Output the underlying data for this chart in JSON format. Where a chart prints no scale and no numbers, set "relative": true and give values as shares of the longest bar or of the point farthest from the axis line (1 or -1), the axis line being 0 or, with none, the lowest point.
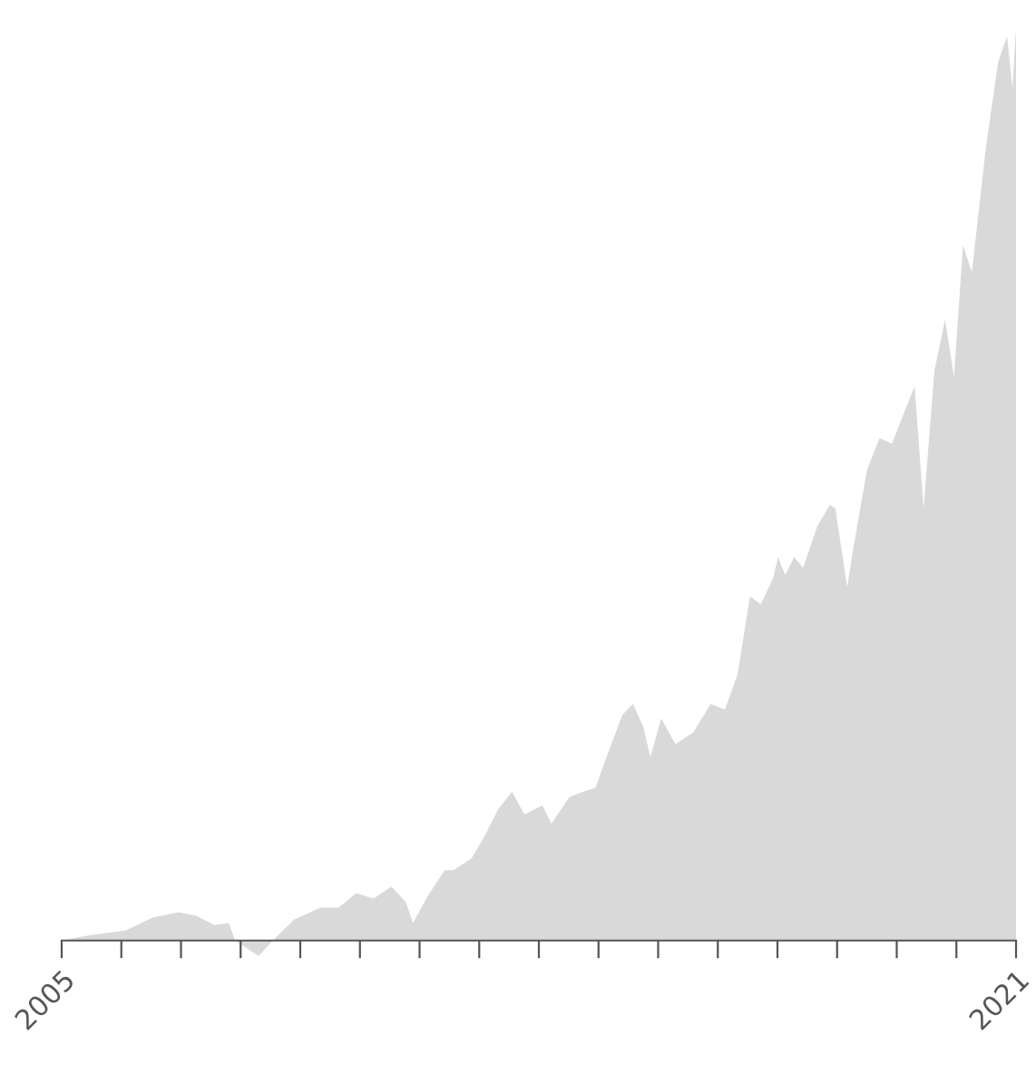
{
  "chart_data": {
    "type": "area",
    "relative": true,
    "color": "#d9d9d9",
    "x": [
      2005.0,
      2005.48,
      2006.07,
      2006.52,
      2006.96,
      2007.26,
      2007.56,
      2007.8,
      2007.91,
      2008.3,
      2008.6,
      2008.9,
      2009.34,
      2009.64,
      2009.94,
      2010.23,
      2010.53,
      2010.77,
      2010.89,
      2011.13,
      2011.42,
      2011.57,
      2011.87,
      2012.08,
      2012.32,
      2012.55,
      2012.76,
      2013.06,
      2013.21,
      2013.51,
      2013.74,
      2013.95,
      2014.1,
      2014.4,
      2014.58,
      2014.75,
      2014.87,
      2015.05,
      2015.29,
      2015.59,
      2015.88,
      2016.12,
      2016.33,
      2016.54,
      2016.72,
      2016.93,
      2017.01,
      2017.13,
      2017.28,
      2017.43,
      2017.67,
      2017.88,
      2017.97,
      2018.17,
      2018.26,
      2018.5,
      2018.71,
      2018.92,
      2019.16,
      2019.3,
      2019.45,
      2019.63,
      2019.81,
      2019.96,
      2020.11,
      2020.26,
      2020.49,
      2020.7,
      2020.85,
      2020.94,
      2021.0
    ],
    "values": [
      0,
      0.006,
      0.011,
      0.025,
      0.031,
      0.027,
      0.017,
      0.019,
      0,
      -0.017,
      0.004,
      0.023,
      0.036,
      0.036,
      0.052,
      0.046,
      0.059,
      0.042,
      0.019,
      0.048,
      0.077,
      0.077,
      0.09,
      0.113,
      0.144,
      0.163,
      0.138,
      0.148,
      0.128,
      0.157,
      0.163,
      0.167,
      0.195,
      0.247,
      0.259,
      0.234,
      0.201,
      0.243,
      0.215,
      0.228,
      0.259,
      0.253,
      0.291,
      0.377,
      0.368,
      0.397,
      0.42,
      0.4,
      0.42,
      0.408,
      0.454,
      0.477,
      0.473,
      0.387,
      0.425,
      0.515,
      0.55,
      0.544,
      0.584,
      0.607,
      0.473,
      0.623,
      0.68,
      0.617,
      0.761,
      0.732,
      0.866,
      0.962,
      0.99,
      0.933,
      1
    ],
    "xlim": [
      2005,
      2021
    ],
    "xticks": [
      2005,
      {
        "value": 2006,
        "label": null
      },
      {
        "value": 2007,
        "label": null
      },
      {
        "value": 2008,
        "label": null
      },
      {
        "value": 2009,
        "label": null
      },
      {
        "value": 2010,
        "label": null
      },
      {
        "value": 2011,
        "label": null
      },
      {
        "value": 2012,
        "label": null
      },
      {
        "value": 2013,
        "label": null
      },
      {
        "value": 2014,
        "label": null
      },
      {
        "value": 2015,
        "label": null
      },
      {
        "value": 2016,
        "label": null
      },
      {
        "value": 2017,
        "label": null
      },
      {
        "value": 2018,
        "label": null
      },
      {
        "value": 2019,
        "label": null
      },
      {
        "value": 2020,
        "label": null
      },
      2021
    ],
    "grid": false,
    "legend": false
  }
}
